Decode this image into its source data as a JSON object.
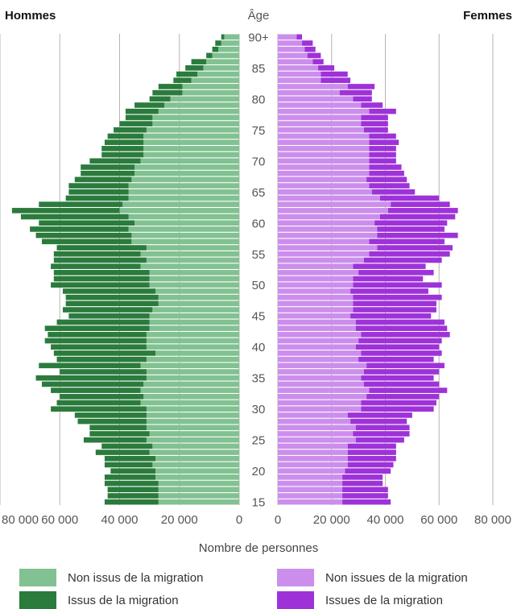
{
  "chart_data": {
    "type": "bar",
    "orientation": "horizontal-pyramid",
    "left_title": "Hommes",
    "right_title": "Femmes",
    "age_title": "Âge",
    "xlabel": "Nombre de personnes",
    "xlim": [
      0,
      80000
    ],
    "x_ticks": [
      "80 000",
      "60 000",
      "40 000",
      "20 000",
      "0",
      "0",
      "20 000",
      "40 000",
      "60 000",
      "80 000"
    ],
    "age_ticks": [
      "15",
      "20",
      "25",
      "30",
      "35",
      "40",
      "45",
      "50",
      "55",
      "60",
      "65",
      "70",
      "75",
      "80",
      "85",
      "90+"
    ],
    "grid": true,
    "ages": [
      "15",
      "16",
      "17",
      "18",
      "19",
      "20",
      "21",
      "22",
      "23",
      "24",
      "25",
      "26",
      "27",
      "28",
      "29",
      "30",
      "31",
      "32",
      "33",
      "34",
      "35",
      "36",
      "37",
      "38",
      "39",
      "40",
      "41",
      "42",
      "43",
      "44",
      "45",
      "46",
      "47",
      "48",
      "49",
      "50",
      "51",
      "52",
      "53",
      "54",
      "55",
      "56",
      "57",
      "58",
      "59",
      "60",
      "61",
      "62",
      "63",
      "64",
      "65",
      "66",
      "67",
      "68",
      "69",
      "70",
      "71",
      "72",
      "73",
      "74",
      "75",
      "76",
      "77",
      "78",
      "79",
      "80",
      "81",
      "82",
      "83",
      "84",
      "85",
      "86",
      "87",
      "88",
      "89",
      "90+"
    ],
    "series": [
      {
        "name": "Non issus de la migration",
        "side": "left",
        "values": [
          27000,
          27000,
          27000,
          27000,
          28000,
          28000,
          29000,
          28000,
          30000,
          29000,
          31000,
          30000,
          31000,
          31000,
          31000,
          31000,
          33000,
          32000,
          33000,
          32000,
          31000,
          31000,
          33000,
          31000,
          28000,
          31000,
          31000,
          31000,
          30000,
          30000,
          30000,
          29000,
          27000,
          27000,
          28000,
          30000,
          30000,
          30000,
          33000,
          31000,
          33000,
          31000,
          36000,
          36000,
          37000,
          35000,
          37000,
          40000,
          39000,
          37000,
          37000,
          37000,
          36000,
          35000,
          35000,
          33000,
          32000,
          32000,
          32000,
          32000,
          31000,
          29000,
          29000,
          27000,
          25000,
          23000,
          19000,
          19000,
          16000,
          14000,
          12000,
          11000,
          9000,
          7000,
          6000,
          5000
        ]
      },
      {
        "name": "Issus de la migration",
        "side": "left",
        "values": [
          18000,
          17000,
          17000,
          18000,
          17000,
          15000,
          16000,
          17000,
          18000,
          17000,
          21000,
          20000,
          19000,
          23000,
          24000,
          32000,
          28000,
          28000,
          30000,
          34000,
          37000,
          29000,
          34000,
          30000,
          34000,
          32000,
          34000,
          33000,
          35000,
          31000,
          27000,
          30000,
          31000,
          31000,
          31000,
          33000,
          32000,
          32000,
          30000,
          31000,
          29000,
          30000,
          30000,
          32000,
          33000,
          32000,
          36000,
          36000,
          28000,
          21000,
          20000,
          20000,
          19000,
          18000,
          18000,
          17000,
          14000,
          14000,
          13000,
          12000,
          11000,
          11000,
          9000,
          11000,
          10000,
          7000,
          10000,
          8000,
          6000,
          7000,
          6000,
          5000,
          2000,
          2000,
          2000,
          1000
        ]
      },
      {
        "name": "Non issues de la migration",
        "side": "right",
        "values": [
          24000,
          24000,
          24000,
          24000,
          24000,
          25000,
          26000,
          26000,
          26000,
          26000,
          29000,
          28000,
          29000,
          27000,
          26000,
          31000,
          31000,
          33000,
          34000,
          32000,
          31000,
          32000,
          33000,
          30000,
          31000,
          29000,
          30000,
          31000,
          29000,
          29000,
          27000,
          28000,
          28000,
          28000,
          27000,
          28000,
          28000,
          30000,
          28000,
          32000,
          34000,
          37000,
          34000,
          37000,
          37000,
          36000,
          38000,
          41000,
          42000,
          38000,
          35000,
          34000,
          33000,
          34000,
          34000,
          34000,
          34000,
          34000,
          34000,
          34000,
          32000,
          31000,
          31000,
          34000,
          31000,
          28000,
          23000,
          26000,
          16000,
          16000,
          15000,
          13000,
          11000,
          10000,
          9000,
          7000
        ]
      },
      {
        "name": "Issues de la migration",
        "side": "right",
        "values": [
          18000,
          17000,
          17000,
          15000,
          15000,
          17000,
          17000,
          18000,
          18000,
          18000,
          18000,
          21000,
          20000,
          21000,
          24000,
          27000,
          28000,
          27000,
          29000,
          28000,
          27000,
          28000,
          29000,
          28000,
          30000,
          31000,
          31000,
          33000,
          34000,
          33000,
          30000,
          31000,
          31000,
          33000,
          29000,
          33000,
          26000,
          28000,
          27000,
          29000,
          30000,
          28000,
          28000,
          30000,
          25000,
          27000,
          28000,
          26000,
          22000,
          22000,
          16000,
          15000,
          15000,
          13000,
          12000,
          10000,
          10000,
          10000,
          11000,
          10000,
          9000,
          10000,
          10000,
          10000,
          8000,
          7000,
          12000,
          10000,
          11000,
          10000,
          6000,
          4000,
          5000,
          4000,
          4000,
          2000
        ]
      }
    ],
    "colors": {
      "non_issus": "#82c191",
      "issus": "#2a7b3c",
      "non_issues": "#cc8eed",
      "issues": "#9e32d9",
      "grid": "#b5b5b5",
      "axis_text": "#555555"
    }
  },
  "legend": [
    {
      "label": "Non issus de la migration",
      "color": "#82c191"
    },
    {
      "label": "Issus de la migration",
      "color": "#2a7b3c"
    },
    {
      "label": "Non issues de la migration",
      "color": "#cc8eed"
    },
    {
      "label": "Issues de la migration",
      "color": "#9e32d9"
    }
  ]
}
